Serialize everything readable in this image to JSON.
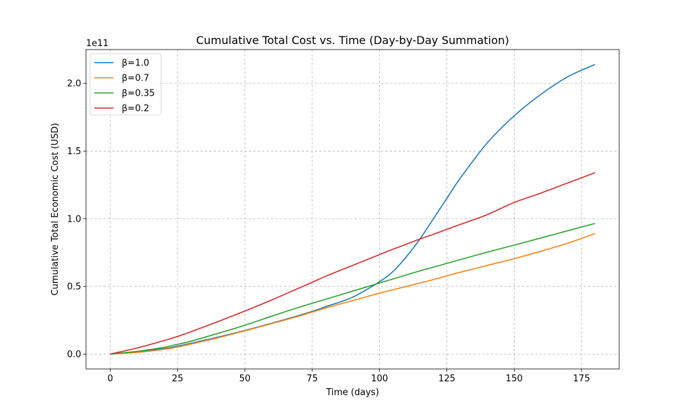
{
  "chart_data": {
    "type": "line",
    "title": "Cumulative Total Cost vs. Time (Day-by-Day Summation)",
    "xlabel": "Time (days)",
    "ylabel": "Cumulative Total Economic Cost (USD)",
    "y_offset_label": "1e11",
    "y_scale_factor": 100000000000,
    "xlim": [
      -9,
      189
    ],
    "ylim": [
      -0.11,
      2.25
    ],
    "x_ticks": [
      0,
      25,
      50,
      75,
      100,
      125,
      150,
      175
    ],
    "y_ticks": [
      0.0,
      0.5,
      1.0,
      1.5,
      2.0
    ],
    "x_tick_labels": [
      "0",
      "25",
      "50",
      "75",
      "100",
      "125",
      "150",
      "175"
    ],
    "y_tick_labels": [
      "0.0",
      "0.5",
      "1.0",
      "1.5",
      "2.0"
    ],
    "grid": true,
    "legend_position": "top-left",
    "x": [
      0,
      10,
      20,
      25,
      30,
      40,
      50,
      60,
      70,
      75,
      80,
      90,
      100,
      105,
      110,
      115,
      120,
      125,
      130,
      140,
      150,
      160,
      170,
      180
    ],
    "series": [
      {
        "name": "β=1.0",
        "color": "#1f77b4",
        "values": [
          0.0,
          0.015,
          0.04,
          0.058,
          0.08,
          0.125,
          0.175,
          0.228,
          0.285,
          0.315,
          0.35,
          0.42,
          0.535,
          0.61,
          0.72,
          0.85,
          1.0,
          1.15,
          1.3,
          1.56,
          1.76,
          1.92,
          2.05,
          2.14
        ]
      },
      {
        "name": "β=0.7",
        "color": "#ff7f0e",
        "values": [
          0.0,
          0.012,
          0.035,
          0.052,
          0.074,
          0.12,
          0.172,
          0.225,
          0.28,
          0.31,
          0.34,
          0.395,
          0.45,
          0.475,
          0.5,
          0.525,
          0.55,
          0.578,
          0.605,
          0.655,
          0.705,
          0.76,
          0.82,
          0.89
        ]
      },
      {
        "name": "β=0.35",
        "color": "#2ca02c",
        "values": [
          0.0,
          0.02,
          0.05,
          0.072,
          0.095,
          0.153,
          0.213,
          0.28,
          0.345,
          0.375,
          0.405,
          0.465,
          0.525,
          0.555,
          0.585,
          0.615,
          0.642,
          0.67,
          0.698,
          0.753,
          0.805,
          0.858,
          0.912,
          0.965
        ]
      },
      {
        "name": "β=0.2",
        "color": "#d62728",
        "values": [
          0.0,
          0.045,
          0.1,
          0.13,
          0.165,
          0.24,
          0.318,
          0.4,
          0.487,
          0.53,
          0.575,
          0.655,
          0.735,
          0.775,
          0.812,
          0.85,
          0.885,
          0.922,
          0.958,
          1.03,
          1.12,
          1.19,
          1.265,
          1.34
        ]
      }
    ]
  }
}
